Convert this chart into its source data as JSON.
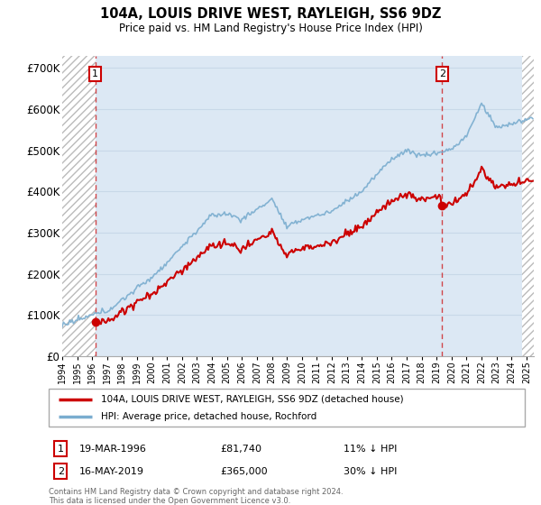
{
  "title": "104A, LOUIS DRIVE WEST, RAYLEIGH, SS6 9DZ",
  "subtitle": "Price paid vs. HM Land Registry's House Price Index (HPI)",
  "legend_line1": "104A, LOUIS DRIVE WEST, RAYLEIGH, SS6 9DZ (detached house)",
  "legend_line2": "HPI: Average price, detached house, Rochford",
  "annotation1_label": "1",
  "annotation1_date": "19-MAR-1996",
  "annotation1_price": "£81,740",
  "annotation1_hpi": "11% ↓ HPI",
  "annotation1_year": 1996.21,
  "annotation1_value": 81740,
  "annotation2_label": "2",
  "annotation2_date": "16-MAY-2019",
  "annotation2_price": "£365,000",
  "annotation2_hpi": "30% ↓ HPI",
  "annotation2_year": 2019.37,
  "annotation2_value": 365000,
  "ylim_min": 0,
  "ylim_max": 730000,
  "yticks": [
    0,
    100000,
    200000,
    300000,
    400000,
    500000,
    600000,
    700000
  ],
  "ytick_labels": [
    "£0",
    "£100K",
    "£200K",
    "£300K",
    "£400K",
    "£500K",
    "£600K",
    "£700K"
  ],
  "property_color": "#cc0000",
  "hpi_color_line": "#7aadcf",
  "footnote": "Contains HM Land Registry data © Crown copyright and database right 2024.\nThis data is licensed under the Open Government Licence v3.0.",
  "hatch_color": "#bbbbbb",
  "grid_color": "#c8d8e8",
  "bg_color": "#dce8f4",
  "xlim_min": 1994,
  "xlim_max": 2025.5
}
